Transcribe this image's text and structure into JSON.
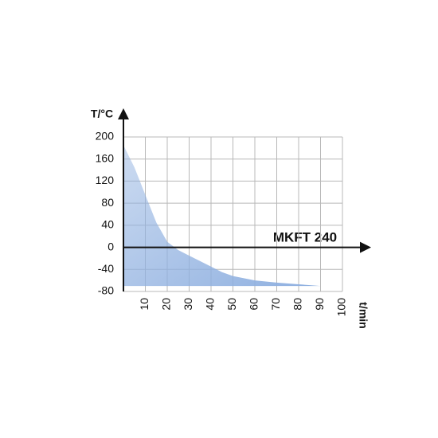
{
  "chart_data": {
    "type": "area",
    "y_label": "T/°C",
    "x_label": "t/min",
    "annotation": "MKFT 240",
    "x": [
      0,
      5,
      10,
      15,
      20,
      25,
      30,
      35,
      40,
      45,
      50,
      55,
      60,
      70,
      80,
      90
    ],
    "values": [
      185,
      145,
      95,
      45,
      10,
      -5,
      -15,
      -25,
      -35,
      -45,
      -52,
      -56,
      -60,
      -64,
      -67,
      -70
    ],
    "color": "#8fb0e0",
    "xlim": [
      0,
      100
    ],
    "xticks": [
      10,
      20,
      30,
      40,
      50,
      60,
      70,
      80,
      90,
      100
    ],
    "ylim": [
      -80,
      200
    ],
    "yticks": [
      -80,
      -40,
      0,
      40,
      80,
      120,
      160,
      200
    ],
    "grid": true
  }
}
